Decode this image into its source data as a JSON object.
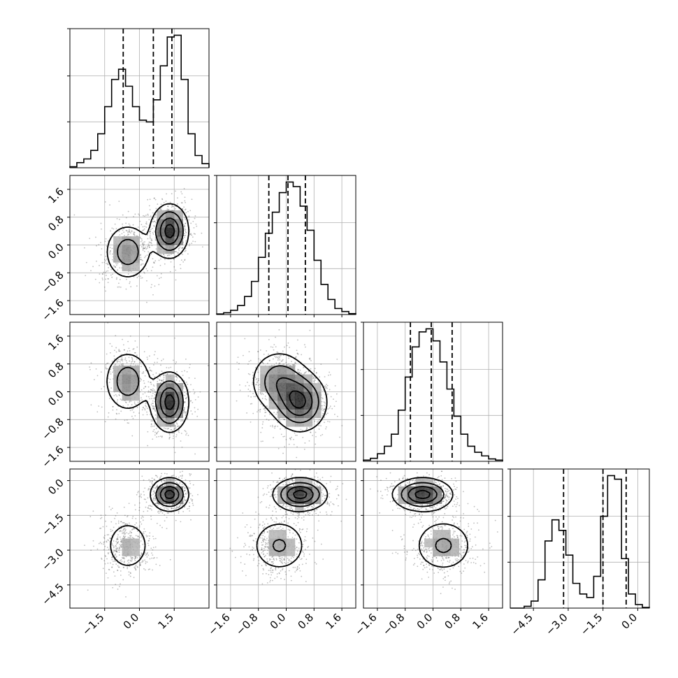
{
  "chart_data": {
    "type": "corner",
    "parameters": 4,
    "grid": true,
    "axes": [
      {
        "index": 0,
        "range": [
          -3.0,
          3.0
        ],
        "ticks": [
          -1.5,
          0.0,
          1.5
        ],
        "tick_labels": [
          "−1.5",
          "0.0",
          "1.5"
        ],
        "quantiles": [
          -0.7,
          0.6,
          1.4
        ],
        "hist": {
          "bins": 20,
          "values": [
            0.3,
            1.5,
            2.6,
            5.1,
            10.0,
            18.0,
            26.0,
            29.0,
            24.0,
            18.0,
            14.0,
            13.5,
            20.0,
            30.0,
            38.5,
            39.0,
            26.0,
            10.0,
            3.6,
            1.2
          ]
        }
      },
      {
        "index": 1,
        "range": [
          -2.0,
          2.0
        ],
        "ticks": [
          -1.6,
          -0.8,
          0.0,
          0.8,
          1.6
        ],
        "tick_labels": [
          "−1.6",
          "−0.8",
          "0.0",
          "0.8",
          "1.6"
        ],
        "quantiles": [
          -0.5,
          0.05,
          0.55
        ],
        "hist": {
          "bins": 20,
          "values": [
            0.2,
            0.6,
            1.4,
            3.0,
            6.0,
            11.0,
            19.0,
            27.0,
            34.0,
            40.5,
            44.0,
            42.5,
            36.0,
            28.0,
            18.0,
            10.0,
            5.0,
            2.0,
            1.0,
            0.3
          ]
        }
      },
      {
        "index": 2,
        "range": [
          -2.0,
          2.0
        ],
        "ticks": [
          -1.6,
          -0.8,
          0.0,
          0.8,
          1.6
        ],
        "tick_labels": [
          "−1.6",
          "−0.8",
          "0.0",
          "0.8",
          "1.6"
        ],
        "quantiles": [
          -0.65,
          -0.05,
          0.55
        ],
        "hist": {
          "bins": 20,
          "values": [
            0.4,
            1.0,
            2.5,
            5.0,
            9.0,
            17.0,
            28.0,
            38.0,
            43.0,
            44.0,
            40.0,
            33.0,
            24.0,
            15.0,
            9.0,
            5.0,
            3.0,
            1.8,
            0.8,
            0.4
          ]
        }
      },
      {
        "index": 3,
        "range": [
          -5.5,
          0.5
        ],
        "ticks": [
          -4.5,
          -3.0,
          -1.5,
          0.0
        ],
        "tick_labels": [
          "−4.5",
          "−3.0",
          "−1.5",
          "0.0"
        ],
        "quantiles": [
          -3.2,
          -1.5,
          -0.5
        ],
        "hist": {
          "bins": 20,
          "values": [
            0.0,
            0.0,
            0.5,
            2.0,
            8.0,
            19.0,
            25.0,
            22.0,
            15.0,
            7.0,
            4.0,
            3.0,
            9.0,
            26.0,
            37.5,
            36.5,
            14.0,
            4.0,
            1.0,
            0.2
          ]
        }
      }
    ],
    "modes": [
      {
        "weight": 0.42,
        "mean": [
          -0.5,
          -0.2,
          0.3,
          -2.8
        ],
        "sd": [
          0.52,
          0.42,
          0.45,
          0.6
        ]
      },
      {
        "weight": 0.58,
        "mean": [
          1.3,
          0.4,
          -0.3,
          -0.6
        ],
        "sd": [
          0.4,
          0.38,
          0.42,
          0.35
        ]
      }
    ]
  }
}
